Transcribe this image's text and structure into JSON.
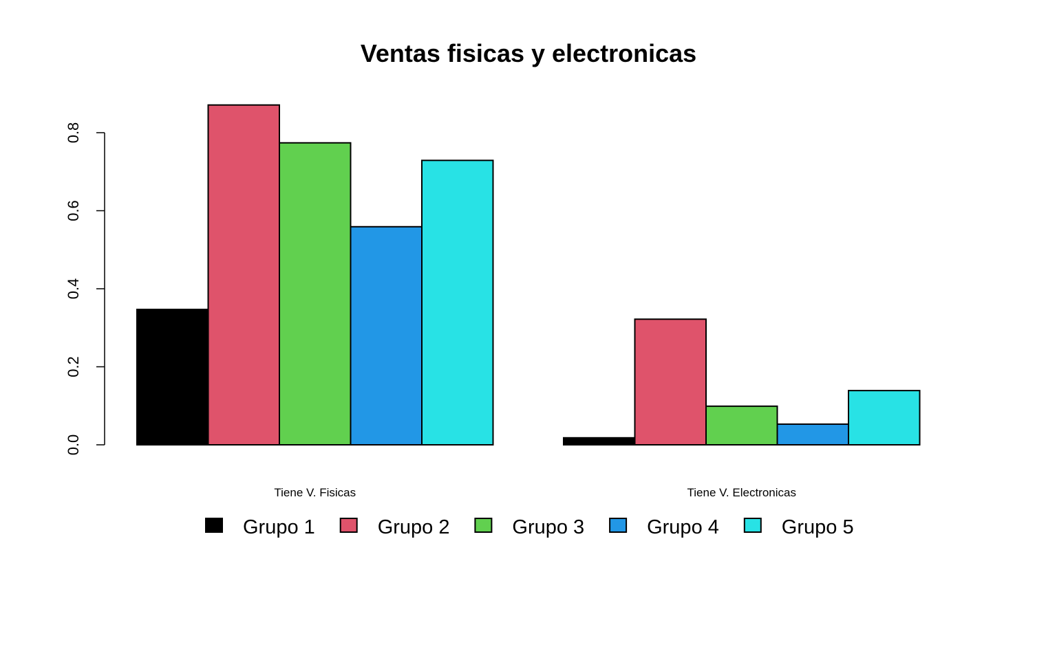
{
  "chart_data": {
    "type": "bar",
    "title": "Ventas fisicas y electronicas",
    "xlabel": "",
    "ylabel": "",
    "categories": [
      "Tiene V. Fisicas",
      "Tiene V. Electronicas"
    ],
    "series": [
      {
        "name": "Grupo 1",
        "color": "#000000",
        "values": [
          0.347,
          0.018
        ]
      },
      {
        "name": "Grupo 2",
        "color": "#DF536B",
        "values": [
          0.871,
          0.322
        ]
      },
      {
        "name": "Grupo 3",
        "color": "#61D04F",
        "values": [
          0.774,
          0.099
        ]
      },
      {
        "name": "Grupo 4",
        "color": "#2297E6",
        "values": [
          0.559,
          0.053
        ]
      },
      {
        "name": "Grupo 5",
        "color": "#28E2E5",
        "values": [
          0.729,
          0.139
        ]
      }
    ],
    "ylim": [
      0,
      0.8
    ],
    "yticks": [
      "0.0",
      "0.2",
      "0.4",
      "0.6",
      "0.8"
    ],
    "grid": false,
    "legend_position": "bottom",
    "stacked": false
  }
}
